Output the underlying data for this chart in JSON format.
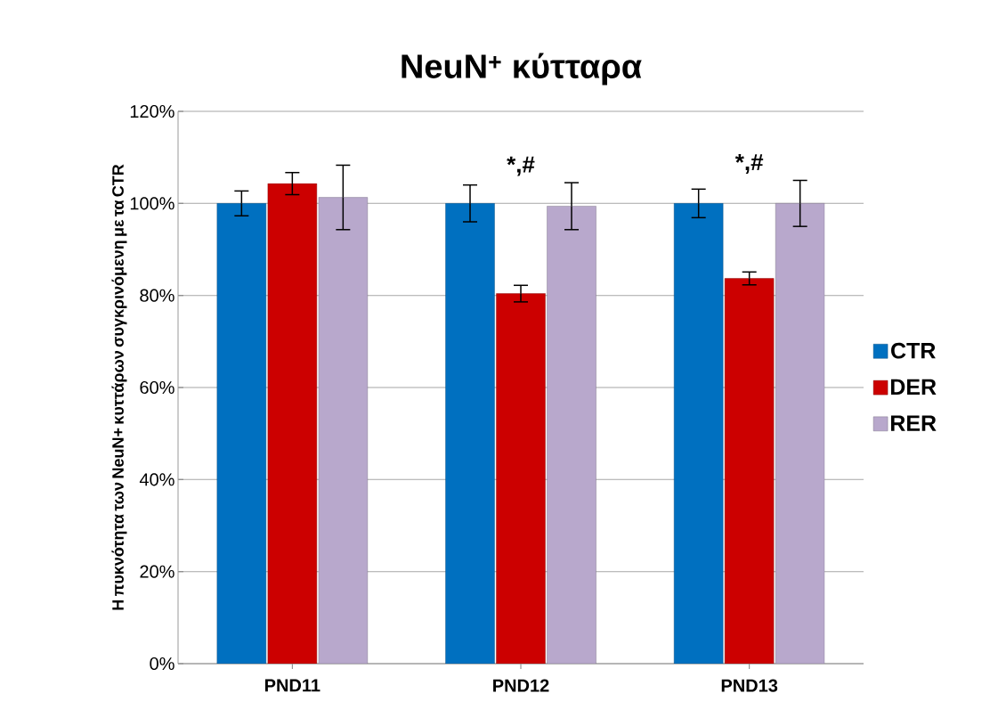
{
  "chart_data": {
    "type": "bar",
    "title": "NeuN$^{+}$ κύτταρα",
    "ylabel": "Η πυκνότητα των NeuN+ κυττάρων συγκρινόμενη με τα CTR",
    "categories": [
      "PND11",
      "PND12",
      "PND13"
    ],
    "series": [
      {
        "name": "CTR",
        "color": "#0070c0",
        "values": [
          100,
          100,
          100
        ],
        "errors": [
          2.7,
          4,
          3.1
        ]
      },
      {
        "name": "DER",
        "color": "#cc0000",
        "values": [
          104.3,
          80.4,
          83.7
        ],
        "errors": [
          2.4,
          1.8,
          1.4
        ]
      },
      {
        "name": "RER",
        "color": "#b8a8cc",
        "values": [
          101.3,
          99.4,
          100
        ],
        "errors": [
          7,
          5.1,
          5
        ]
      }
    ],
    "ylim": [
      0,
      120
    ],
    "yticks": [
      {
        "value": 0,
        "label": "0%"
      },
      {
        "value": 20,
        "label": "20%"
      },
      {
        "value": 40,
        "label": "40%"
      },
      {
        "value": 60,
        "label": "60%"
      },
      {
        "value": 80,
        "label": "80%"
      },
      {
        "value": 100,
        "label": "100%"
      },
      {
        "value": 120,
        "label": "120%"
      }
    ],
    "grid": "y",
    "legend": "right",
    "annotations": [
      "*,#",
      "*,#"
    ]
  }
}
